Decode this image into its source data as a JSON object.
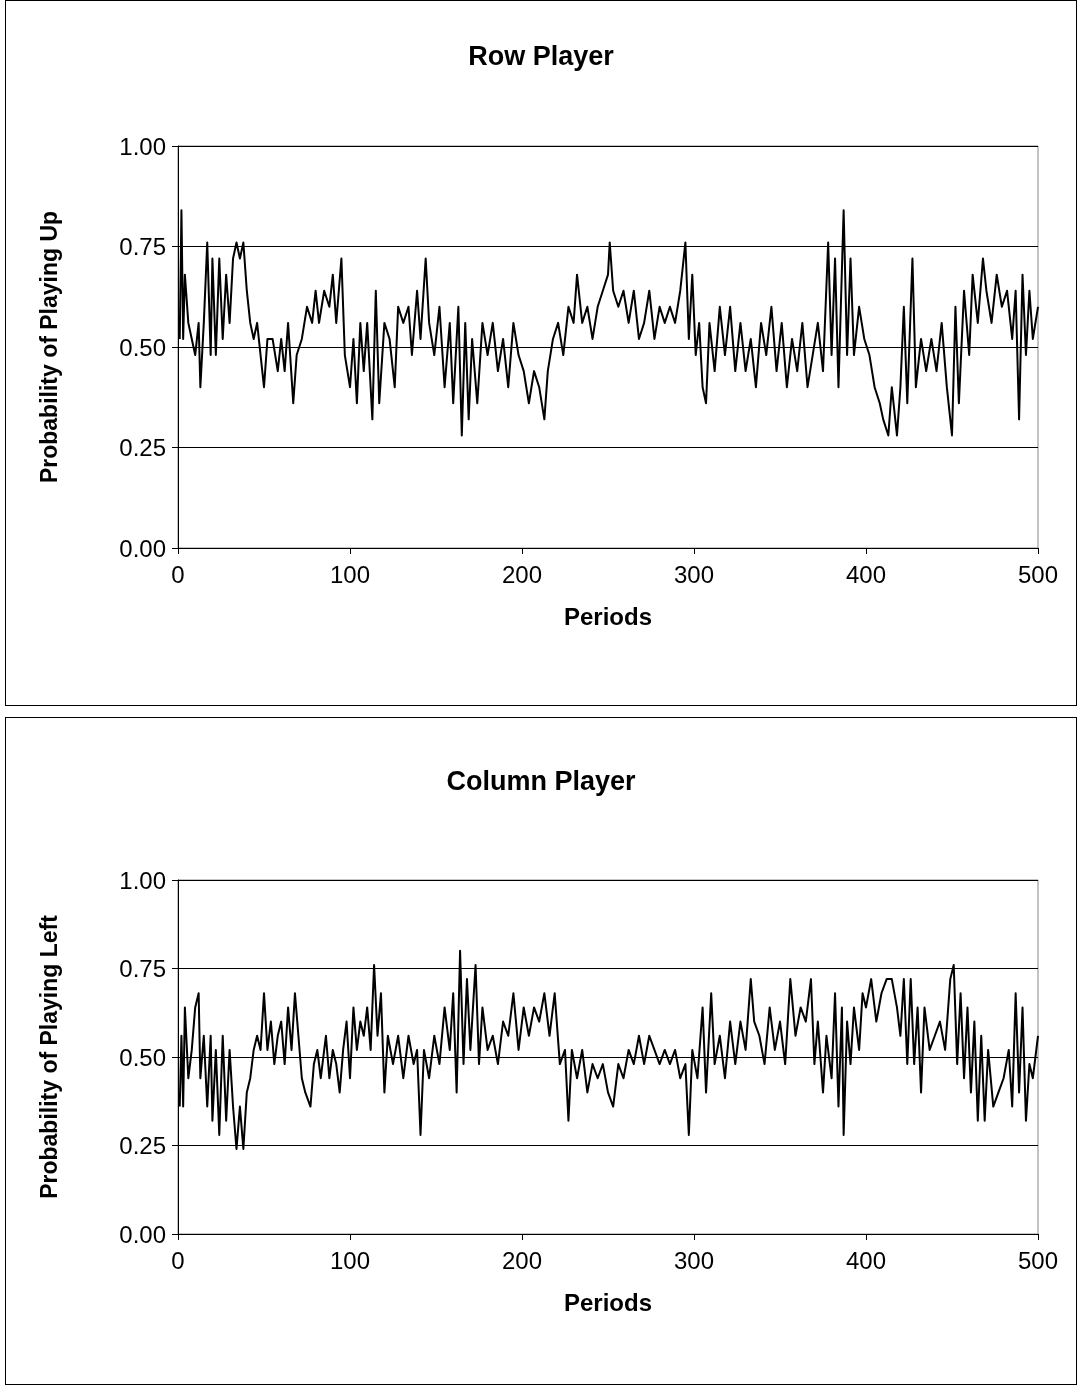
{
  "chart_data": [
    {
      "type": "line",
      "title": "Row Player",
      "xlabel": "Periods",
      "ylabel": "Probability of Playing Up",
      "xlim": [
        0,
        500
      ],
      "xticks": [
        0,
        100,
        200,
        300,
        400,
        500
      ],
      "ylim": [
        0,
        1
      ],
      "yticks": [
        {
          "value": 0,
          "label": "0.00"
        },
        {
          "value": 0.25,
          "label": "0.25"
        },
        {
          "value": 0.5,
          "label": "0.50"
        },
        {
          "value": 0.75,
          "label": "0.75"
        },
        {
          "value": 1,
          "label": "1.00"
        }
      ],
      "grid": "y",
      "marker": "none",
      "line_style": "solid",
      "series": [
        {
          "color": "#000000",
          "x": [
            1,
            2,
            3,
            4,
            6,
            8,
            10,
            12,
            13,
            15,
            17,
            19,
            20,
            22,
            24,
            26,
            28,
            30,
            32,
            34,
            36,
            38,
            40,
            42,
            44,
            46,
            48,
            50,
            52,
            55,
            58,
            60,
            62,
            64,
            67,
            69,
            72,
            75,
            78,
            80,
            82,
            85,
            88,
            90,
            92,
            95,
            97,
            100,
            102,
            104,
            106,
            108,
            110,
            113,
            115,
            117,
            120,
            123,
            126,
            128,
            131,
            134,
            136,
            139,
            141,
            144,
            146,
            149,
            152,
            155,
            158,
            160,
            163,
            165,
            167,
            169,
            171,
            174,
            177,
            180,
            183,
            186,
            189,
            192,
            195,
            198,
            201,
            204,
            207,
            210,
            213,
            215,
            218,
            221,
            224,
            227,
            230,
            232,
            235,
            238,
            241,
            244,
            247,
            250,
            251,
            253,
            256,
            259,
            262,
            265,
            268,
            271,
            274,
            277,
            280,
            283,
            286,
            289,
            292,
            295,
            297,
            299,
            301,
            303,
            305,
            307,
            309,
            312,
            315,
            318,
            321,
            324,
            327,
            330,
            333,
            336,
            339,
            342,
            345,
            348,
            351,
            354,
            357,
            360,
            363,
            366,
            369,
            372,
            375,
            378,
            380,
            382,
            384,
            387,
            389,
            391,
            393,
            396,
            399,
            402,
            405,
            408,
            410,
            413,
            415,
            418,
            420,
            422,
            424,
            427,
            429,
            432,
            435,
            438,
            441,
            444,
            447,
            450,
            452,
            454,
            457,
            460,
            462,
            465,
            468,
            470,
            473,
            476,
            479,
            482,
            485,
            487,
            489,
            491,
            493,
            495,
            497,
            500
          ],
          "values": [
            0.52,
            0.84,
            0.52,
            0.68,
            0.56,
            0.52,
            0.48,
            0.56,
            0.4,
            0.56,
            0.76,
            0.48,
            0.72,
            0.48,
            0.72,
            0.52,
            0.68,
            0.56,
            0.72,
            0.76,
            0.72,
            0.76,
            0.64,
            0.56,
            0.52,
            0.56,
            0.48,
            0.4,
            0.52,
            0.52,
            0.44,
            0.52,
            0.44,
            0.56,
            0.36,
            0.48,
            0.52,
            0.6,
            0.56,
            0.64,
            0.56,
            0.64,
            0.6,
            0.68,
            0.56,
            0.72,
            0.48,
            0.4,
            0.52,
            0.36,
            0.56,
            0.44,
            0.56,
            0.32,
            0.64,
            0.36,
            0.56,
            0.52,
            0.4,
            0.6,
            0.56,
            0.6,
            0.48,
            0.64,
            0.52,
            0.72,
            0.56,
            0.48,
            0.6,
            0.4,
            0.56,
            0.36,
            0.6,
            0.28,
            0.56,
            0.32,
            0.52,
            0.36,
            0.56,
            0.48,
            0.56,
            0.44,
            0.52,
            0.4,
            0.56,
            0.48,
            0.44,
            0.36,
            0.44,
            0.4,
            0.32,
            0.44,
            0.52,
            0.56,
            0.48,
            0.6,
            0.56,
            0.68,
            0.56,
            0.6,
            0.52,
            0.6,
            0.64,
            0.68,
            0.76,
            0.64,
            0.6,
            0.64,
            0.56,
            0.64,
            0.52,
            0.56,
            0.64,
            0.52,
            0.6,
            0.56,
            0.6,
            0.56,
            0.64,
            0.76,
            0.52,
            0.68,
            0.48,
            0.56,
            0.4,
            0.36,
            0.56,
            0.44,
            0.6,
            0.48,
            0.6,
            0.44,
            0.56,
            0.44,
            0.52,
            0.4,
            0.56,
            0.48,
            0.6,
            0.44,
            0.56,
            0.4,
            0.52,
            0.44,
            0.56,
            0.4,
            0.48,
            0.56,
            0.44,
            0.76,
            0.48,
            0.72,
            0.4,
            0.84,
            0.48,
            0.72,
            0.48,
            0.6,
            0.52,
            0.48,
            0.4,
            0.36,
            0.32,
            0.28,
            0.4,
            0.28,
            0.4,
            0.6,
            0.36,
            0.72,
            0.4,
            0.52,
            0.44,
            0.52,
            0.44,
            0.56,
            0.4,
            0.28,
            0.6,
            0.36,
            0.64,
            0.48,
            0.68,
            0.56,
            0.72,
            0.64,
            0.56,
            0.68,
            0.6,
            0.64,
            0.52,
            0.64,
            0.32,
            0.68,
            0.48,
            0.64,
            0.52,
            0.6
          ]
        }
      ]
    },
    {
      "type": "line",
      "title": "Column Player",
      "xlabel": "Periods",
      "ylabel": "Probability of Playing Left",
      "xlim": [
        0,
        500
      ],
      "xticks": [
        0,
        100,
        200,
        300,
        400,
        500
      ],
      "ylim": [
        0,
        1
      ],
      "yticks": [
        {
          "value": 0,
          "label": "0.00"
        },
        {
          "value": 0.25,
          "label": "0.25"
        },
        {
          "value": 0.5,
          "label": "0.50"
        },
        {
          "value": 0.75,
          "label": "0.75"
        },
        {
          "value": 1,
          "label": "1.00"
        }
      ],
      "grid": "y",
      "marker": "none",
      "line_style": "solid",
      "series": [
        {
          "color": "#000000",
          "x": [
            1,
            2,
            3,
            4,
            6,
            8,
            10,
            12,
            13,
            15,
            17,
            19,
            20,
            22,
            24,
            26,
            28,
            30,
            32,
            34,
            36,
            38,
            40,
            42,
            44,
            46,
            48,
            50,
            52,
            54,
            56,
            58,
            60,
            62,
            64,
            66,
            68,
            70,
            72,
            74,
            77,
            79,
            81,
            83,
            86,
            88,
            90,
            92,
            94,
            96,
            98,
            100,
            102,
            104,
            106,
            108,
            110,
            112,
            114,
            116,
            118,
            120,
            122,
            125,
            128,
            131,
            134,
            137,
            139,
            141,
            143,
            146,
            149,
            152,
            155,
            158,
            160,
            162,
            164,
            166,
            168,
            170,
            173,
            175,
            177,
            180,
            183,
            186,
            189,
            192,
            195,
            198,
            201,
            204,
            207,
            210,
            213,
            216,
            219,
            222,
            225,
            227,
            229,
            232,
            235,
            238,
            241,
            244,
            247,
            250,
            253,
            256,
            259,
            262,
            265,
            268,
            271,
            274,
            277,
            280,
            283,
            286,
            289,
            292,
            295,
            297,
            299,
            302,
            305,
            307,
            310,
            312,
            315,
            318,
            321,
            324,
            327,
            330,
            333,
            335,
            338,
            341,
            344,
            347,
            350,
            353,
            356,
            359,
            362,
            365,
            368,
            370,
            372,
            375,
            377,
            380,
            382,
            384,
            386,
            387,
            389,
            391,
            393,
            396,
            398,
            400,
            403,
            406,
            409,
            412,
            415,
            418,
            420,
            422,
            424,
            426,
            428,
            430,
            432,
            434,
            437,
            440,
            443,
            446,
            449,
            451,
            453,
            455,
            457,
            459,
            461,
            463,
            465,
            467,
            469,
            471,
            474,
            477,
            480,
            483,
            485,
            487,
            489,
            491,
            493,
            495,
            497,
            500
          ],
          "values": [
            0.36,
            0.56,
            0.36,
            0.64,
            0.44,
            0.52,
            0.64,
            0.68,
            0.44,
            0.56,
            0.36,
            0.56,
            0.32,
            0.52,
            0.28,
            0.56,
            0.32,
            0.52,
            0.36,
            0.24,
            0.36,
            0.24,
            0.4,
            0.44,
            0.52,
            0.56,
            0.52,
            0.68,
            0.52,
            0.6,
            0.48,
            0.56,
            0.6,
            0.48,
            0.64,
            0.52,
            0.68,
            0.56,
            0.44,
            0.4,
            0.36,
            0.48,
            0.52,
            0.44,
            0.56,
            0.44,
            0.52,
            0.48,
            0.4,
            0.52,
            0.6,
            0.44,
            0.64,
            0.52,
            0.6,
            0.56,
            0.64,
            0.52,
            0.76,
            0.56,
            0.68,
            0.4,
            0.56,
            0.48,
            0.56,
            0.44,
            0.56,
            0.48,
            0.52,
            0.28,
            0.52,
            0.44,
            0.56,
            0.48,
            0.64,
            0.52,
            0.68,
            0.4,
            0.8,
            0.48,
            0.72,
            0.52,
            0.76,
            0.48,
            0.64,
            0.52,
            0.56,
            0.48,
            0.6,
            0.56,
            0.68,
            0.52,
            0.64,
            0.56,
            0.64,
            0.6,
            0.68,
            0.56,
            0.68,
            0.48,
            0.52,
            0.32,
            0.52,
            0.44,
            0.52,
            0.4,
            0.48,
            0.44,
            0.48,
            0.4,
            0.36,
            0.48,
            0.44,
            0.52,
            0.48,
            0.56,
            0.48,
            0.56,
            0.52,
            0.48,
            0.52,
            0.48,
            0.52,
            0.44,
            0.48,
            0.28,
            0.52,
            0.44,
            0.64,
            0.4,
            0.68,
            0.48,
            0.56,
            0.44,
            0.6,
            0.48,
            0.6,
            0.52,
            0.72,
            0.6,
            0.56,
            0.48,
            0.64,
            0.52,
            0.6,
            0.48,
            0.72,
            0.56,
            0.64,
            0.6,
            0.72,
            0.48,
            0.6,
            0.4,
            0.56,
            0.44,
            0.68,
            0.36,
            0.64,
            0.28,
            0.6,
            0.48,
            0.64,
            0.52,
            0.68,
            0.64,
            0.72,
            0.6,
            0.68,
            0.72,
            0.72,
            0.64,
            0.56,
            0.72,
            0.48,
            0.72,
            0.48,
            0.64,
            0.4,
            0.64,
            0.52,
            0.56,
            0.6,
            0.52,
            0.72,
            0.76,
            0.48,
            0.68,
            0.44,
            0.64,
            0.4,
            0.6,
            0.32,
            0.56,
            0.32,
            0.52,
            0.36,
            0.4,
            0.44,
            0.52,
            0.36,
            0.68,
            0.4,
            0.64,
            0.32,
            0.48,
            0.44,
            0.56
          ]
        }
      ]
    }
  ]
}
